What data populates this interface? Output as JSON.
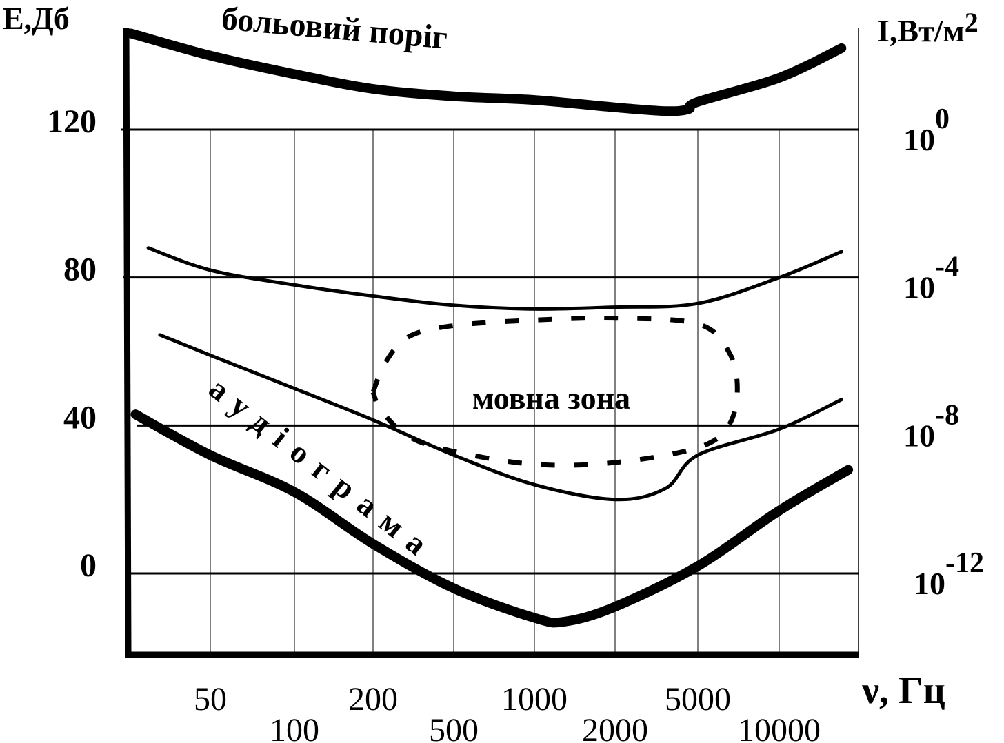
{
  "chart_data": {
    "type": "line",
    "title": "",
    "xlabel": "ν, Гц",
    "ylabel_left": "Е,Дб",
    "ylabel_right": "I,Вт/м",
    "ylabel_right_sup": "2",
    "x_scale": "log",
    "x_ticks": [
      50,
      100,
      200,
      500,
      1000,
      2000,
      5000,
      10000
    ],
    "x_tick_labels": [
      "50",
      "100",
      "200",
      "500",
      "1000",
      "2000",
      "5000",
      "10000"
    ],
    "y_ticks": [
      0,
      40,
      80,
      120
    ],
    "y_tick_labels": [
      "0",
      "40",
      "80",
      "120"
    ],
    "ylim": [
      -21,
      157
    ],
    "y_right_ticks": [
      {
        "base": "10",
        "exp": "0",
        "at_db": 120
      },
      {
        "base": "10",
        "exp": "-4",
        "at_db": 80
      },
      {
        "base": "10",
        "exp": "-8",
        "at_db": 40
      },
      {
        "base": "10",
        "exp": "-12",
        "at_db": 0
      }
    ],
    "grid": "horizontal at y ticks, vertical at x ticks",
    "annotations": {
      "pain_threshold": "больовий поріг",
      "audiogram": "аудіограма",
      "speech_zone": "мовна зона"
    },
    "series": [
      {
        "name": "больовий поріг",
        "style": "thick",
        "x": [
          26,
          50,
          100,
          200,
          500,
          1000,
          2000,
          3500,
          4500,
          5000,
          10000,
          17000
        ],
        "y": [
          146,
          140,
          135,
          131,
          129,
          128,
          126,
          125,
          125.5,
          127.5,
          134,
          142
        ]
      },
      {
        "name": "",
        "style": "thin",
        "x": [
          30,
          50,
          100,
          200,
          500,
          1000,
          2000,
          5000,
          10000,
          17000
        ],
        "y": [
          88,
          82,
          78,
          75,
          72.5,
          71.5,
          72,
          73,
          80,
          87
        ]
      },
      {
        "name": "",
        "style": "thin",
        "x": [
          33,
          50,
          100,
          200,
          500,
          1000,
          2000,
          3500,
          5000,
          10000,
          17000
        ],
        "y": [
          64.5,
          59,
          50,
          41.5,
          32,
          24,
          20,
          23,
          32,
          39,
          47
        ]
      },
      {
        "name": "аудіограма",
        "style": "thick",
        "x": [
          27,
          50,
          100,
          200,
          500,
          1000,
          1300,
          2000,
          5000,
          10000,
          18000
        ],
        "y": [
          43,
          32,
          22,
          8,
          -4,
          -12,
          -13,
          -9,
          2,
          17,
          28
        ]
      }
    ],
    "speech_zone_outline": {
      "x": [
        200,
        230,
        300,
        500,
        1000,
        2000,
        5000,
        6500,
        7000,
        6500,
        5000,
        2000,
        1000,
        500,
        300,
        220,
        200
      ],
      "y": [
        49,
        57,
        64,
        67,
        68.5,
        69,
        67.5,
        60,
        50,
        40,
        34,
        30,
        29.5,
        33,
        37,
        44,
        49
      ]
    }
  }
}
